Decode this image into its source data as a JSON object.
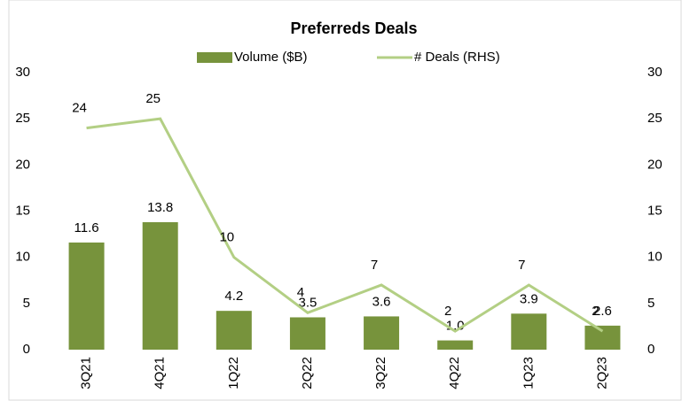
{
  "chart_data": {
    "type": "bar-line",
    "title": "Preferreds Deals",
    "categories": [
      "3Q21",
      "4Q21",
      "1Q22",
      "2Q22",
      "3Q22",
      "4Q22",
      "1Q23",
      "2Q23"
    ],
    "series": [
      {
        "name": "Volume ($B)",
        "type": "bar",
        "color": "#77933c",
        "values": [
          11.6,
          13.8,
          4.2,
          3.5,
          3.6,
          1.0,
          3.9,
          2.6
        ],
        "value_labels": [
          "11.6",
          "13.8",
          "4.2",
          "3.5",
          "3.6",
          "1.0",
          "3.9",
          "2.6"
        ]
      },
      {
        "name": "# Deals (RHS)",
        "type": "line",
        "axis": "y2",
        "color": "#b3cf84",
        "values": [
          24,
          25,
          10,
          4,
          7,
          2,
          7,
          2
        ]
      }
    ],
    "ylim": [
      0,
      30
    ],
    "yticks": [
      0,
      5,
      10,
      15,
      20,
      25,
      30
    ],
    "y2lim": [
      0,
      30
    ],
    "y2ticks": [
      0,
      5,
      10,
      15,
      20,
      25,
      30
    ]
  }
}
